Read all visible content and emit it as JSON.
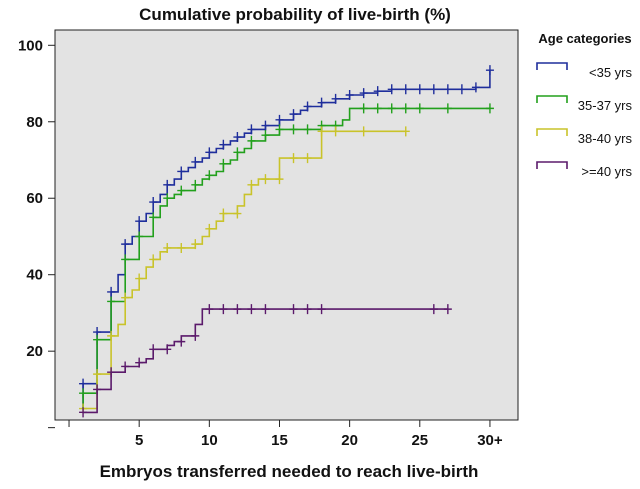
{
  "chart_data": {
    "type": "line",
    "step": true,
    "title": "Cumulative probability of live-birth (%)",
    "xlabel": "Embryos transferred needed to reach live-birth",
    "ylabel": "",
    "xlim": [
      -1,
      32
    ],
    "ylim": [
      2,
      104
    ],
    "x_ticks": [
      {
        "value": 0,
        "label": ""
      },
      {
        "value": 5,
        "label": "5"
      },
      {
        "value": 10,
        "label": "10"
      },
      {
        "value": 15,
        "label": "15"
      },
      {
        "value": 20,
        "label": "20"
      },
      {
        "value": 25,
        "label": "25"
      },
      {
        "value": 30,
        "label": "30+"
      }
    ],
    "y_ticks": [
      {
        "value": 0,
        "label": ""
      },
      {
        "value": 20,
        "label": "20"
      },
      {
        "value": 40,
        "label": "40"
      },
      {
        "value": 60,
        "label": "60"
      },
      {
        "value": 80,
        "label": "80"
      },
      {
        "value": 100,
        "label": "100"
      }
    ],
    "grid": false,
    "plot_background": "#e3e3e3",
    "legend": {
      "title": "Age categories",
      "position": "right"
    },
    "series": [
      {
        "name": "<35 yrs",
        "color": "#1f2e9c",
        "points": [
          [
            1,
            5
          ],
          [
            1,
            11.5
          ],
          [
            2,
            11.5
          ],
          [
            2,
            25
          ],
          [
            3,
            25
          ],
          [
            3,
            35.5
          ],
          [
            3.5,
            35.5
          ],
          [
            3.5,
            40
          ],
          [
            4,
            40
          ],
          [
            4,
            48
          ],
          [
            4.5,
            48
          ],
          [
            4.5,
            50
          ],
          [
            5,
            50
          ],
          [
            5,
            54
          ],
          [
            5.5,
            54
          ],
          [
            5.5,
            56
          ],
          [
            6,
            56
          ],
          [
            6,
            59
          ],
          [
            6.5,
            59
          ],
          [
            6.5,
            61
          ],
          [
            7,
            61
          ],
          [
            7,
            63.5
          ],
          [
            7.5,
            63.5
          ],
          [
            7.5,
            65
          ],
          [
            8,
            65
          ],
          [
            8,
            67
          ],
          [
            8.5,
            67
          ],
          [
            8.5,
            68
          ],
          [
            9,
            68
          ],
          [
            9,
            69.5
          ],
          [
            9.5,
            69.5
          ],
          [
            9.5,
            70.5
          ],
          [
            10,
            70.5
          ],
          [
            10,
            72
          ],
          [
            10.5,
            72
          ],
          [
            10.5,
            73
          ],
          [
            11,
            73
          ],
          [
            11,
            74
          ],
          [
            11.5,
            74
          ],
          [
            11.5,
            75
          ],
          [
            12,
            75
          ],
          [
            12,
            76
          ],
          [
            12.5,
            76
          ],
          [
            12.5,
            77
          ],
          [
            13,
            77
          ],
          [
            13,
            78
          ],
          [
            14,
            78
          ],
          [
            14,
            79
          ],
          [
            15,
            79
          ],
          [
            15,
            80.5
          ],
          [
            16,
            80.5
          ],
          [
            16,
            82
          ],
          [
            16.5,
            82
          ],
          [
            16.5,
            83
          ],
          [
            17,
            83
          ],
          [
            17,
            84
          ],
          [
            18,
            84
          ],
          [
            18,
            85
          ],
          [
            19,
            85
          ],
          [
            19,
            86
          ],
          [
            20,
            86
          ],
          [
            20,
            87
          ],
          [
            21,
            87
          ],
          [
            21,
            87.5
          ],
          [
            22,
            87.5
          ],
          [
            22,
            88
          ],
          [
            23,
            88
          ],
          [
            23,
            88.5
          ],
          [
            29,
            88.5
          ],
          [
            29,
            89
          ],
          [
            30,
            89
          ],
          [
            30,
            93.5
          ]
        ],
        "censored": [
          [
            1,
            11.5
          ],
          [
            2,
            25
          ],
          [
            3,
            35.5
          ],
          [
            4,
            48
          ],
          [
            5,
            54
          ],
          [
            6,
            59
          ],
          [
            7,
            63.5
          ],
          [
            8,
            67
          ],
          [
            9,
            69.5
          ],
          [
            10,
            72
          ],
          [
            11,
            74
          ],
          [
            12,
            76
          ],
          [
            13,
            78
          ],
          [
            14,
            79
          ],
          [
            15,
            80.5
          ],
          [
            16,
            82
          ],
          [
            17,
            84
          ],
          [
            18,
            85
          ],
          [
            19,
            86
          ],
          [
            20,
            87
          ],
          [
            21,
            87.5
          ],
          [
            22,
            88
          ],
          [
            23,
            88.5
          ],
          [
            24,
            88.5
          ],
          [
            25,
            88.5
          ],
          [
            26,
            88.5
          ],
          [
            27,
            88.5
          ],
          [
            28,
            88.5
          ],
          [
            29,
            89
          ],
          [
            30,
            93.5
          ]
        ]
      },
      {
        "name": "35-37 yrs",
        "color": "#22a01c",
        "points": [
          [
            1,
            5
          ],
          [
            1,
            9
          ],
          [
            2,
            9
          ],
          [
            2,
            23
          ],
          [
            3,
            23
          ],
          [
            3,
            33
          ],
          [
            4,
            33
          ],
          [
            4,
            44
          ],
          [
            5,
            44
          ],
          [
            5,
            50
          ],
          [
            6,
            50
          ],
          [
            6,
            55
          ],
          [
            6.5,
            55
          ],
          [
            6.5,
            58
          ],
          [
            7,
            58
          ],
          [
            7,
            60
          ],
          [
            7.5,
            60
          ],
          [
            7.5,
            61
          ],
          [
            8,
            61
          ],
          [
            8,
            62
          ],
          [
            9,
            62
          ],
          [
            9,
            63.5
          ],
          [
            9.5,
            63.5
          ],
          [
            9.5,
            65
          ],
          [
            10,
            65
          ],
          [
            10,
            66
          ],
          [
            10.5,
            66
          ],
          [
            10.5,
            67
          ],
          [
            11,
            67
          ],
          [
            11,
            69
          ],
          [
            11.5,
            69
          ],
          [
            11.5,
            70
          ],
          [
            12,
            70
          ],
          [
            12,
            72
          ],
          [
            12.5,
            72
          ],
          [
            12.5,
            73
          ],
          [
            13,
            73
          ],
          [
            13,
            75
          ],
          [
            14,
            75
          ],
          [
            14,
            76.5
          ],
          [
            15,
            76.5
          ],
          [
            15,
            78
          ],
          [
            18,
            78
          ],
          [
            18,
            79
          ],
          [
            19.5,
            79
          ],
          [
            19.5,
            80.5
          ],
          [
            20,
            80.5
          ],
          [
            20,
            83.5
          ],
          [
            30,
            83.5
          ]
        ],
        "censored": [
          [
            1,
            9
          ],
          [
            2,
            23
          ],
          [
            3,
            33
          ],
          [
            4,
            44
          ],
          [
            5,
            50
          ],
          [
            6,
            55
          ],
          [
            7,
            60
          ],
          [
            8,
            62
          ],
          [
            9,
            63.5
          ],
          [
            10,
            66
          ],
          [
            11,
            69
          ],
          [
            12,
            72
          ],
          [
            13,
            75
          ],
          [
            14,
            76.5
          ],
          [
            15,
            78
          ],
          [
            16,
            78
          ],
          [
            17,
            78
          ],
          [
            18,
            79
          ],
          [
            19,
            79
          ],
          [
            21,
            83.5
          ],
          [
            22,
            83.5
          ],
          [
            23,
            83.5
          ],
          [
            24,
            83.5
          ],
          [
            25,
            83.5
          ],
          [
            27,
            83.5
          ],
          [
            30,
            83.5
          ]
        ]
      },
      {
        "name": "38-40 yrs",
        "color": "#c9c32a",
        "points": [
          [
            1,
            5
          ],
          [
            2,
            5
          ],
          [
            2,
            14
          ],
          [
            3,
            14
          ],
          [
            3,
            24
          ],
          [
            3.5,
            24
          ],
          [
            3.5,
            27
          ],
          [
            4,
            27
          ],
          [
            4,
            34
          ],
          [
            4.5,
            34
          ],
          [
            4.5,
            36
          ],
          [
            5,
            36
          ],
          [
            5,
            39
          ],
          [
            5.5,
            39
          ],
          [
            5.5,
            42
          ],
          [
            6,
            42
          ],
          [
            6,
            44
          ],
          [
            6.5,
            44
          ],
          [
            6.5,
            46
          ],
          [
            7,
            46
          ],
          [
            7,
            47
          ],
          [
            9,
            47
          ],
          [
            9,
            48
          ],
          [
            9.5,
            48
          ],
          [
            9.5,
            50
          ],
          [
            10,
            50
          ],
          [
            10,
            52
          ],
          [
            10.5,
            52
          ],
          [
            10.5,
            54
          ],
          [
            11,
            54
          ],
          [
            11,
            56
          ],
          [
            12,
            56
          ],
          [
            12,
            58
          ],
          [
            12.5,
            58
          ],
          [
            12.5,
            61
          ],
          [
            13,
            61
          ],
          [
            13,
            63.5
          ],
          [
            13.5,
            63.5
          ],
          [
            13.5,
            65
          ],
          [
            15,
            65
          ],
          [
            15,
            70.5
          ],
          [
            18,
            70.5
          ],
          [
            18,
            77.5
          ],
          [
            24,
            77.5
          ]
        ],
        "censored": [
          [
            1,
            5
          ],
          [
            2,
            14
          ],
          [
            3,
            24
          ],
          [
            4,
            34
          ],
          [
            5,
            39
          ],
          [
            6,
            44
          ],
          [
            7,
            47
          ],
          [
            8,
            47
          ],
          [
            9,
            48
          ],
          [
            10,
            52
          ],
          [
            11,
            56
          ],
          [
            12,
            56
          ],
          [
            13,
            63.5
          ],
          [
            14,
            65
          ],
          [
            15,
            65
          ],
          [
            16,
            70.5
          ],
          [
            17,
            70.5
          ],
          [
            18,
            77.5
          ],
          [
            19,
            77.5
          ],
          [
            21,
            77.5
          ],
          [
            24,
            77.5
          ]
        ]
      },
      {
        "name": ">=40 yrs",
        "color": "#5b1a6b",
        "points": [
          [
            1,
            4
          ],
          [
            2,
            4
          ],
          [
            2,
            10
          ],
          [
            3,
            10
          ],
          [
            3,
            14.5
          ],
          [
            4,
            14.5
          ],
          [
            4,
            16
          ],
          [
            5,
            16
          ],
          [
            5,
            17
          ],
          [
            5.5,
            17
          ],
          [
            5.5,
            18
          ],
          [
            6,
            18
          ],
          [
            6,
            20.5
          ],
          [
            7,
            20.5
          ],
          [
            7,
            21.5
          ],
          [
            7.5,
            21.5
          ],
          [
            7.5,
            22.5
          ],
          [
            8,
            22.5
          ],
          [
            8,
            24
          ],
          [
            9,
            24
          ],
          [
            9,
            27
          ],
          [
            9.5,
            27
          ],
          [
            9.5,
            31
          ],
          [
            27,
            31
          ]
        ],
        "censored": [
          [
            1,
            4
          ],
          [
            2,
            10
          ],
          [
            3,
            14.5
          ],
          [
            4,
            16
          ],
          [
            5,
            17
          ],
          [
            6,
            20.5
          ],
          [
            7,
            20.5
          ],
          [
            8,
            22.5
          ],
          [
            9,
            24
          ],
          [
            10,
            31
          ],
          [
            11,
            31
          ],
          [
            12,
            31
          ],
          [
            13,
            31
          ],
          [
            14,
            31
          ],
          [
            16,
            31
          ],
          [
            17,
            31
          ],
          [
            18,
            31
          ],
          [
            26,
            31
          ],
          [
            27,
            31
          ]
        ]
      }
    ]
  }
}
